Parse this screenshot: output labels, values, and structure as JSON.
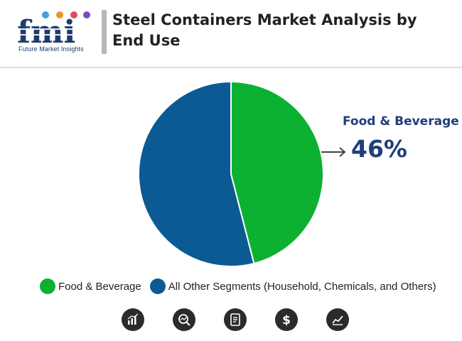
{
  "brand": {
    "logo_text": "fmi",
    "tagline": "Future Market Insights"
  },
  "title": "Steel Containers Market Analysis by End Use",
  "callout": {
    "label": "Food & Beverage",
    "value": "46%"
  },
  "colors": {
    "food_beverage": "#0cb132",
    "other_segments": "#0b5a93",
    "title_text": "#222222",
    "callout_text": "#1e3f7a"
  },
  "chart_data": {
    "type": "pie",
    "title": "Steel Containers Market Analysis by End Use",
    "series": [
      {
        "name": "Food & Beverage",
        "value": 46
      },
      {
        "name": "All Other Segments (Household, Chemicals, and Others)",
        "value": 54
      }
    ],
    "legend_placement": "bottom"
  },
  "legend": [
    {
      "label": "Food & Beverage"
    },
    {
      "label": "All Other Segments (Household, Chemicals, and Others)"
    }
  ],
  "footer_icons": [
    "bar-chart-icon",
    "search-analytics-icon",
    "document-icon",
    "dollar-icon",
    "line-chart-icon"
  ]
}
